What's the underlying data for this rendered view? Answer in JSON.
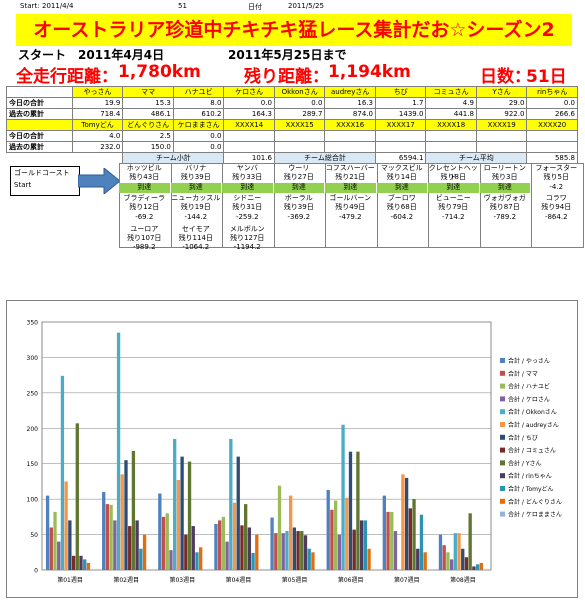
{
  "header": {
    "start_label": "Start:",
    "start_date": "2011/4/4",
    "days_count": "51",
    "date_label": "日付",
    "current_date": "2011/5/25"
  },
  "banner": "オーストラリア珍道中チキチキ猛レース集計だお☆シーズン2",
  "info": {
    "start_label": "スタート",
    "start_date": "2011年4月4日",
    "until": "2011年5月25日まで",
    "total_label": "全走行距離：",
    "total_value": "1,780km",
    "remain_label": "残り距離：",
    "remain_value": "1,194km",
    "days_label": "日数：",
    "days_value": "51日"
  },
  "table": {
    "names1": [
      "やっさん",
      "ママ",
      "ハナユビ",
      "ケロさん",
      "Okkonさん",
      "audreyさん",
      "ちび",
      "コミュさん",
      "Yさん",
      "rinちゃん"
    ],
    "today1_label": "今日の合計",
    "today1": [
      "19.9",
      "15.3",
      "8.0",
      "0.0",
      "0.0",
      "16.3",
      "1.7",
      "4.9",
      "29.0",
      "0.0"
    ],
    "past1_label": "過去の累計",
    "past1": [
      "718.4",
      "486.1",
      "610.2",
      "164.3",
      "289.7",
      "874.0",
      "1439.0",
      "441.8",
      "922.0",
      "266.6"
    ],
    "names2": [
      "Tomyどん",
      "どんぐりさん",
      "ケロままさん",
      "XXXX14",
      "XXXX15",
      "XXXX16",
      "XXXX17",
      "XXXX18",
      "XXXX19",
      "XXXX20"
    ],
    "today2_label": "今日の合計",
    "today2": [
      "4.0",
      "2.5",
      "0.0",
      "",
      "",
      "",
      "",
      "",
      "",
      ""
    ],
    "past2_label": "過去の累計",
    "past2": [
      "232.0",
      "150.0",
      "0.0",
      "",
      "",
      "",
      "",
      "",
      "",
      ""
    ],
    "team_small_label": "チーム小計",
    "team_small_value": "101.6",
    "team_total_label": "チーム総合計",
    "team_total_value": "6594.1",
    "team_avg_label": "チーム平均",
    "team_avg_value": "585.8"
  },
  "route": {
    "start_line1": "ゴールドコースト",
    "start_line2": "Start",
    "row1": [
      {
        "name": "ホッツビル",
        "remain": "残り43日",
        "status": "到達"
      },
      {
        "name": "バリナ",
        "remain": "残り39日",
        "status": "到達"
      },
      {
        "name": "ヤンバ",
        "remain": "残り33日",
        "status": "到達"
      },
      {
        "name": "ウーリ",
        "remain": "残り27日",
        "status": "到達"
      },
      {
        "name": "コフスハーバー",
        "remain": "残り21日",
        "status": "到達"
      },
      {
        "name": "マックスビル",
        "remain": "残り14日",
        "status": "到達"
      },
      {
        "name": "クレセントヘッド",
        "remain": "残り8日",
        "status": "到達"
      },
      {
        "name": "ローリートン",
        "remain": "残り3日",
        "status": "到達"
      },
      {
        "name": "フォースター",
        "remain": "残り5日",
        "status": "-4.2"
      }
    ],
    "row2": [
      {
        "name": "ブラディーラ",
        "remain": "残り12日",
        "value": "-69.2"
      },
      {
        "name": "ニューカッスル",
        "remain": "残り19日",
        "value": "-144.2"
      },
      {
        "name": "シドニー",
        "remain": "残り31日",
        "value": "-259.2"
      },
      {
        "name": "ボーラル",
        "remain": "残り39日",
        "value": "-369.2"
      },
      {
        "name": "ゴールバーン",
        "remain": "残り49日",
        "value": "-479.2"
      },
      {
        "name": "ブーロワ",
        "remain": "残り68日",
        "value": "-604.2"
      },
      {
        "name": "ビューニー",
        "remain": "残り79日",
        "value": "-714.2"
      },
      {
        "name": "ヴォガヴォガ",
        "remain": "残り87日",
        "value": "-789.2"
      },
      {
        "name": "コラワ",
        "remain": "残り94日",
        "value": "-864.2"
      }
    ],
    "row3": [
      {
        "name": "ユーロア",
        "remain": "残り107日",
        "value": "-989.2"
      },
      {
        "name": "セイモア",
        "remain": "残り114日",
        "value": "-1064.2"
      },
      {
        "name": "メルボルン",
        "remain": "残り127日",
        "value": "-1194.2"
      }
    ]
  },
  "chart_data": {
    "type": "bar",
    "categories": [
      "第01週目",
      "第02週目",
      "第03週目",
      "第04週目",
      "第05週目",
      "第06週目",
      "第07週目",
      "第08週目"
    ],
    "ylim": [
      0,
      350
    ],
    "yticks": [
      "0",
      "50",
      "100",
      "150",
      "200",
      "250",
      "300",
      "350"
    ],
    "grid": true,
    "legend": "right",
    "series": [
      {
        "name": "合計 / やっさん",
        "color": "#4f81bd",
        "values": [
          105,
          110,
          108,
          65,
          74,
          113,
          105,
          50
        ]
      },
      {
        "name": "合計 / ママ",
        "color": "#c0504d",
        "values": [
          60,
          93,
          75,
          70,
          52,
          85,
          82,
          35
        ]
      },
      {
        "name": "合計 / ハナユビ",
        "color": "#9bbb59",
        "values": [
          82,
          92,
          80,
          75,
          119,
          98,
          82,
          25
        ]
      },
      {
        "name": "合計 / ケロさん",
        "color": "#8064a2",
        "values": [
          40,
          70,
          28,
          40,
          52,
          50,
          55,
          15
        ]
      },
      {
        "name": "合計 / Okkonさん",
        "color": "#4bacc6",
        "values": [
          274,
          335,
          185,
          185,
          55,
          205,
          0,
          52
        ]
      },
      {
        "name": "合計 / audreyさん",
        "color": "#f79646",
        "values": [
          125,
          135,
          127,
          95,
          105,
          102,
          135,
          52
        ]
      },
      {
        "name": "合計 / ちび",
        "color": "#2c4d75",
        "values": [
          70,
          155,
          160,
          160,
          60,
          167,
          130,
          30
        ]
      },
      {
        "name": "合計 / コミュさん",
        "color": "#772c2a",
        "values": [
          20,
          62,
          50,
          63,
          55,
          57,
          87,
          18
        ]
      },
      {
        "name": "合計 / Yさん",
        "color": "#5f7530",
        "values": [
          207,
          168,
          153,
          93,
          55,
          167,
          100,
          80
        ]
      },
      {
        "name": "合計 / rinちゃん",
        "color": "#4d3b62",
        "values": [
          20,
          70,
          62,
          60,
          49,
          70,
          30,
          5
        ]
      },
      {
        "name": "合計 / Tomyどん",
        "color": "#2c93b1",
        "values": [
          15,
          30,
          25,
          24,
          30,
          70,
          78,
          8
        ]
      },
      {
        "name": "合計 / どんぐりさん",
        "color": "#e46c0a",
        "values": [
          10,
          50,
          32,
          50,
          25,
          30,
          25,
          10
        ]
      },
      {
        "name": "合計 / ケロままさん",
        "color": "#95b3d7",
        "values": [
          0,
          0,
          0,
          0,
          0,
          0,
          0,
          0
        ]
      }
    ]
  }
}
